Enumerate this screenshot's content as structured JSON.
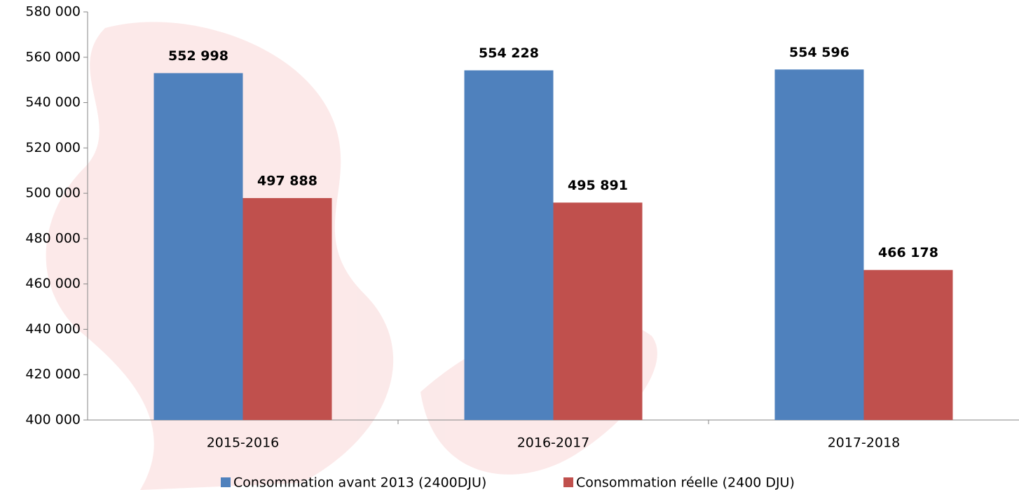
{
  "chart_data": {
    "type": "bar",
    "categories": [
      "2015-2016",
      "2016-2017",
      "2017-2018"
    ],
    "series": [
      {
        "name": "Consommation avant 2013 (2400DJU)",
        "color": "#4f81bd",
        "values": [
          552998,
          554228,
          554596
        ],
        "value_labels": [
          "552 998",
          "554 228",
          "554 596"
        ]
      },
      {
        "name": "Consommation réelle (2400 DJU)",
        "color": "#c0504d",
        "values": [
          497888,
          495891,
          466178
        ],
        "value_labels": [
          "497 888",
          "495 891",
          "466 178"
        ]
      }
    ],
    "ylim": [
      400000,
      580000
    ],
    "yticks": [
      {
        "value": 400000,
        "label": "400 000"
      },
      {
        "value": 420000,
        "label": "420 000"
      },
      {
        "value": 440000,
        "label": "440 000"
      },
      {
        "value": 460000,
        "label": "460 000"
      },
      {
        "value": 480000,
        "label": "480 000"
      },
      {
        "value": 500000,
        "label": "500 000"
      },
      {
        "value": 520000,
        "label": "520 000"
      },
      {
        "value": 540000,
        "label": "540 000"
      },
      {
        "value": 560000,
        "label": "560 000"
      },
      {
        "value": 580000,
        "label": "580 000"
      }
    ],
    "grid": false,
    "legend": "bottom"
  }
}
